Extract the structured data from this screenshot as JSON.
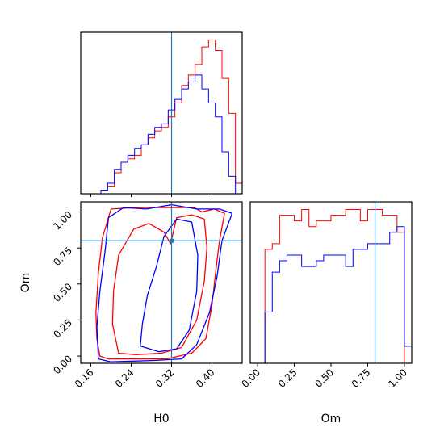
{
  "colors": {
    "red": "#ff0000",
    "blue": "#0000ff",
    "truth": "#1f77b4",
    "frame": "#000000"
  },
  "chart_data": {
    "type": "corner",
    "parameters": [
      "H0",
      "Om"
    ],
    "truths": {
      "H0": 0.32,
      "Om": 0.8
    },
    "grid": false,
    "panels": {
      "h0_hist": {
        "type": "histogram",
        "x_range": [
          0.14,
          0.46
        ],
        "bins": 24,
        "series": [
          {
            "color": "red",
            "values": [
              0,
              0,
              0,
              1,
              2,
              6,
              9,
              10,
              11,
              14,
              16,
              18,
              19,
              22,
              26,
              31,
              34,
              37,
              42,
              44,
              41,
              33,
              23,
              3
            ]
          },
          {
            "color": "blue",
            "values": [
              0,
              0,
              0,
              1,
              3,
              7,
              9,
              11,
              13,
              14,
              17,
              19,
              20,
              24,
              27,
              30,
              32,
              34,
              30,
              26,
              22,
              12,
              5,
              0
            ]
          }
        ]
      },
      "om_hist": {
        "type": "histogram",
        "x_range": [
          -0.05,
          1.05
        ],
        "bins": 22,
        "series": [
          {
            "color": "red",
            "values": [
              0,
              0,
              20,
              21,
              26,
              26,
              25,
              27,
              24,
              25,
              25,
              26,
              26,
              27,
              27,
              25,
              27,
              27,
              26,
              26,
              23,
              0
            ]
          },
          {
            "color": "blue",
            "values": [
              0,
              0,
              9,
              16,
              18,
              19,
              19,
              17,
              17,
              18,
              19,
              19,
              19,
              17,
              20,
              20,
              21,
              21,
              21,
              23,
              24,
              3
            ]
          }
        ]
      },
      "joint": {
        "type": "contour",
        "x": "H0",
        "y": "Om",
        "x_range": [
          0.14,
          0.46
        ],
        "y_range": [
          -0.05,
          1.07
        ],
        "x_ticks": [
          "0.16",
          "0.24",
          "0.32",
          "0.40"
        ],
        "y_ticks": [
          "0.00",
          "0.25",
          "0.50",
          "0.75",
          "1.00"
        ],
        "contours": [
          {
            "color": "red",
            "points": [
              [
                0.178,
                0.0
              ],
              [
                0.195,
                -0.02
              ],
              [
                0.255,
                -0.02
              ],
              [
                0.31,
                -0.02
              ],
              [
                0.36,
                0.02
              ],
              [
                0.388,
                0.12
              ],
              [
                0.4,
                0.35
              ],
              [
                0.408,
                0.6
              ],
              [
                0.415,
                0.8
              ],
              [
                0.425,
                0.99
              ],
              [
                0.405,
                1.02
              ],
              [
                0.38,
                1.0
              ],
              [
                0.365,
                1.03
              ],
              [
                0.3,
                1.03
              ],
              [
                0.25,
                1.03
              ],
              [
                0.2,
                1.02
              ],
              [
                0.183,
                0.82
              ],
              [
                0.175,
                0.58
              ],
              [
                0.17,
                0.3
              ],
              [
                0.172,
                0.12
              ],
              [
                0.178,
                0.0
              ]
            ]
          },
          {
            "color": "red",
            "points": [
              [
                0.215,
                0.02
              ],
              [
                0.25,
                0.01
              ],
              [
                0.3,
                0.02
              ],
              [
                0.34,
                0.06
              ],
              [
                0.37,
                0.25
              ],
              [
                0.385,
                0.52
              ],
              [
                0.39,
                0.75
              ],
              [
                0.385,
                0.95
              ],
              [
                0.36,
                0.98
              ],
              [
                0.33,
                0.96
              ],
              [
                0.318,
                0.78
              ],
              [
                0.305,
                0.86
              ],
              [
                0.275,
                0.92
              ],
              [
                0.245,
                0.88
              ],
              [
                0.215,
                0.7
              ],
              [
                0.205,
                0.45
              ],
              [
                0.203,
                0.22
              ],
              [
                0.215,
                0.02
              ]
            ]
          },
          {
            "color": "blue",
            "points": [
              [
                0.175,
                -0.02
              ],
              [
                0.2,
                -0.04
              ],
              [
                0.29,
                -0.03
              ],
              [
                0.34,
                -0.02
              ],
              [
                0.37,
                0.08
              ],
              [
                0.395,
                0.3
              ],
              [
                0.41,
                0.55
              ],
              [
                0.42,
                0.8
              ],
              [
                0.44,
                0.99
              ],
              [
                0.415,
                1.02
              ],
              [
                0.37,
                1.02
              ],
              [
                0.32,
                1.05
              ],
              [
                0.27,
                1.02
              ],
              [
                0.225,
                1.03
              ],
              [
                0.195,
                0.96
              ],
              [
                0.188,
                0.72
              ],
              [
                0.178,
                0.45
              ],
              [
                0.172,
                0.2
              ],
              [
                0.175,
                -0.02
              ]
            ]
          },
          {
            "color": "blue",
            "points": [
              [
                0.258,
                0.07
              ],
              [
                0.295,
                0.03
              ],
              [
                0.33,
                0.05
              ],
              [
                0.355,
                0.18
              ],
              [
                0.37,
                0.45
              ],
              [
                0.372,
                0.7
              ],
              [
                0.36,
                0.93
              ],
              [
                0.33,
                0.95
              ],
              [
                0.305,
                0.83
              ],
              [
                0.29,
                0.62
              ],
              [
                0.272,
                0.42
              ],
              [
                0.262,
                0.22
              ],
              [
                0.258,
                0.07
              ]
            ]
          }
        ]
      }
    }
  }
}
